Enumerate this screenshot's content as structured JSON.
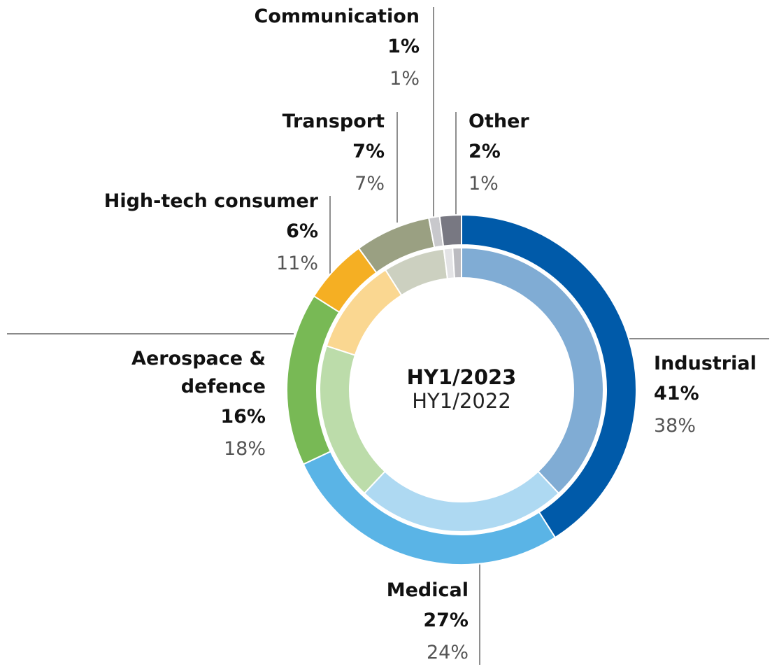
{
  "chart_data": {
    "type": "donut",
    "categories": [
      "Industrial",
      "Medical",
      "Aerospace & defence",
      "High-tech consumer",
      "Transport",
      "Communication",
      "Other"
    ],
    "series": [
      {
        "name": "HY1/2023",
        "values": [
          41,
          27,
          16,
          6,
          7,
          1,
          2
        ],
        "value_labels": [
          "41%",
          "27%",
          "16%",
          "6%",
          "7%",
          "1%",
          "2%"
        ],
        "colors": [
          "#005aa9",
          "#5ab4e6",
          "#78b955",
          "#f5af23",
          "#9aa082",
          "#c8c8cc",
          "#787882"
        ]
      },
      {
        "name": "HY1/2022",
        "values": [
          38,
          24,
          18,
          11,
          7,
          1,
          1
        ],
        "value_labels": [
          "38%",
          "24%",
          "18%",
          "11%",
          "7%",
          "1%",
          "1%"
        ],
        "colors": [
          "#80acd4",
          "#aed9f2",
          "#bcdcaa",
          "#fad791",
          "#ccd0c0",
          "#e3e3e5",
          "#bbbbc0"
        ]
      }
    ]
  }
}
